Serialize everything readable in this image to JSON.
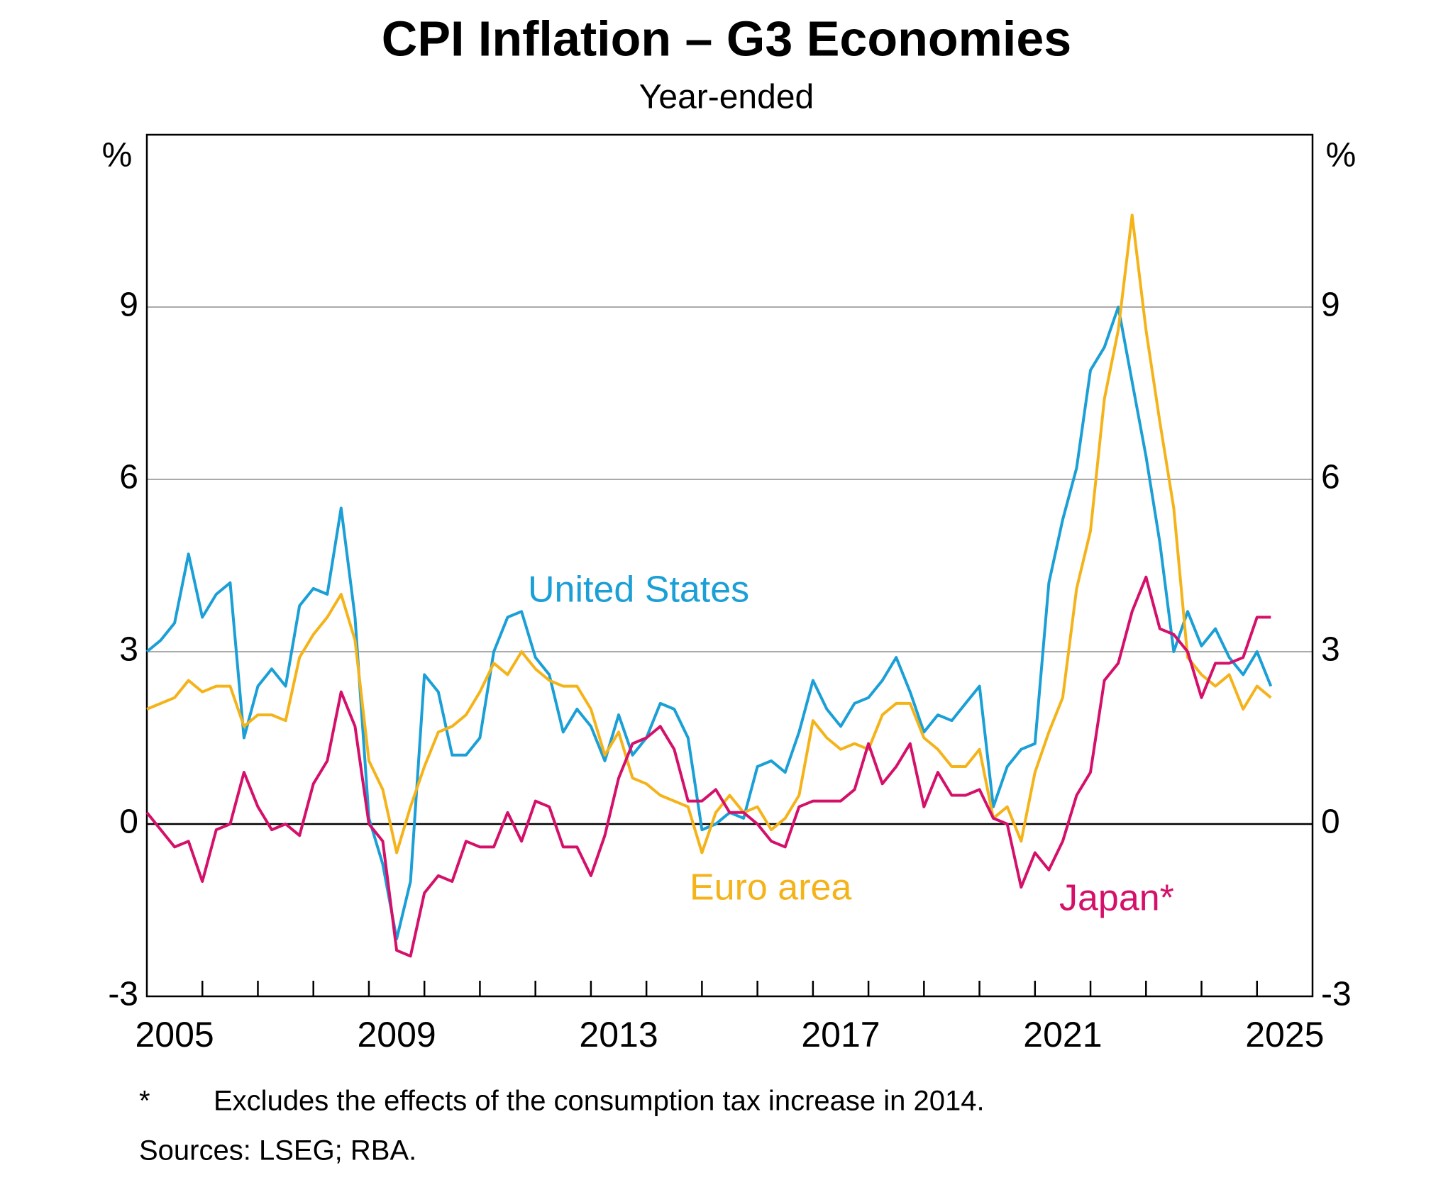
{
  "chart_data": {
    "type": "line",
    "title": "CPI Inflation – G3 Economies",
    "subtitle": "Year-ended",
    "y_label": "%",
    "y2_label": "%",
    "notes": [
      "*",
      "Excludes the effects of the consumption tax increase in 2014.",
      "Sources: LSEG; RBA."
    ],
    "xlim": [
      2005,
      2026
    ],
    "xticks": [
      {
        "value": 2005.5,
        "label": "2005"
      },
      {
        "value": 2009.5,
        "label": "2009"
      },
      {
        "value": 2013.5,
        "label": "2013"
      },
      {
        "value": 2017.5,
        "label": "2017"
      },
      {
        "value": 2021.5,
        "label": "2021"
      },
      {
        "value": 2025.5,
        "label": "2025"
      }
    ],
    "xminor_ticks": [
      2006,
      2007,
      2008,
      2009,
      2010,
      2011,
      2012,
      2013,
      2014,
      2015,
      2016,
      2017,
      2018,
      2019,
      2020,
      2021,
      2022,
      2023,
      2024,
      2025
    ],
    "ylim": [
      -3,
      12
    ],
    "yticks": [
      -3,
      0,
      3,
      6,
      9
    ],
    "grid": true,
    "x": [
      2005,
      2005.25,
      2005.5,
      2005.75,
      2006,
      2006.25,
      2006.5,
      2006.75,
      2007,
      2007.25,
      2007.5,
      2007.75,
      2008,
      2008.25,
      2008.5,
      2008.75,
      2009,
      2009.25,
      2009.5,
      2009.75,
      2010,
      2010.25,
      2010.5,
      2010.75,
      2011,
      2011.25,
      2011.5,
      2011.75,
      2012,
      2012.25,
      2012.5,
      2012.75,
      2013,
      2013.25,
      2013.5,
      2013.75,
      2014,
      2014.25,
      2014.5,
      2014.75,
      2015,
      2015.25,
      2015.5,
      2015.75,
      2016,
      2016.25,
      2016.5,
      2016.75,
      2017,
      2017.25,
      2017.5,
      2017.75,
      2018,
      2018.25,
      2018.5,
      2018.75,
      2019,
      2019.25,
      2019.5,
      2019.75,
      2020,
      2020.25,
      2020.5,
      2020.75,
      2021,
      2021.25,
      2021.5,
      2021.75,
      2022,
      2022.25,
      2022.5,
      2022.75,
      2023,
      2023.25,
      2023.5,
      2023.75,
      2024,
      2024.25,
      2024.5,
      2024.75,
      2025,
      2025.25
    ],
    "series": [
      {
        "name": "United States",
        "color": "#1a9fd6",
        "values": [
          3.0,
          3.2,
          3.5,
          4.7,
          3.6,
          4.0,
          4.2,
          1.5,
          2.4,
          2.7,
          2.4,
          3.8,
          4.1,
          4.0,
          5.5,
          3.6,
          0.1,
          -0.7,
          -2.0,
          -1.0,
          2.6,
          2.3,
          1.2,
          1.2,
          1.5,
          3.0,
          3.6,
          3.7,
          2.9,
          2.6,
          1.6,
          2.0,
          1.7,
          1.1,
          1.9,
          1.2,
          1.5,
          2.1,
          2.0,
          1.5,
          -0.1,
          0.0,
          0.2,
          0.1,
          1.0,
          1.1,
          0.9,
          1.6,
          2.5,
          2.0,
          1.7,
          2.1,
          2.2,
          2.5,
          2.9,
          2.3,
          1.6,
          1.9,
          1.8,
          2.1,
          2.4,
          0.3,
          1.0,
          1.3,
          1.4,
          4.2,
          5.3,
          6.2,
          7.9,
          8.3,
          9.0,
          7.7,
          6.4,
          4.9,
          3.0,
          3.7,
          3.1,
          3.4,
          2.9,
          2.6,
          3.0,
          2.4
        ]
      },
      {
        "name": "Euro area",
        "color": "#f5b31a",
        "values": [
          2.0,
          2.1,
          2.2,
          2.5,
          2.3,
          2.4,
          2.4,
          1.7,
          1.9,
          1.9,
          1.8,
          2.9,
          3.3,
          3.6,
          4.0,
          3.2,
          1.1,
          0.6,
          -0.5,
          0.3,
          1.0,
          1.6,
          1.7,
          1.9,
          2.3,
          2.8,
          2.6,
          3.0,
          2.7,
          2.5,
          2.4,
          2.4,
          2.0,
          1.2,
          1.6,
          0.8,
          0.7,
          0.5,
          0.4,
          0.3,
          -0.5,
          0.2,
          0.5,
          0.2,
          0.3,
          -0.1,
          0.1,
          0.5,
          1.8,
          1.5,
          1.3,
          1.4,
          1.3,
          1.9,
          2.1,
          2.1,
          1.5,
          1.3,
          1.0,
          1.0,
          1.3,
          0.1,
          0.3,
          -0.3,
          0.9,
          1.6,
          2.2,
          4.1,
          5.1,
          7.4,
          8.6,
          10.6,
          8.6,
          7.0,
          5.5,
          2.9,
          2.6,
          2.4,
          2.6,
          2.0,
          2.4,
          2.2
        ]
      },
      {
        "name": "Japan*",
        "color": "#d4106a",
        "values": [
          0.2,
          -0.1,
          -0.4,
          -0.3,
          -1.0,
          -0.1,
          0.0,
          0.9,
          0.3,
          -0.1,
          0.0,
          -0.2,
          0.7,
          1.1,
          2.3,
          1.7,
          0.0,
          -0.3,
          -2.2,
          -2.3,
          -1.2,
          -0.9,
          -1.0,
          -0.3,
          -0.4,
          -0.4,
          0.2,
          -0.3,
          0.4,
          0.3,
          -0.4,
          -0.4,
          -0.9,
          -0.2,
          0.8,
          1.4,
          1.5,
          1.7,
          1.3,
          0.4,
          0.4,
          0.6,
          0.2,
          0.2,
          0.0,
          -0.3,
          -0.4,
          0.3,
          0.4,
          0.4,
          0.4,
          0.6,
          1.4,
          0.7,
          1.0,
          1.4,
          0.3,
          0.9,
          0.5,
          0.5,
          0.6,
          0.1,
          0.0,
          -1.1,
          -0.5,
          -0.8,
          -0.3,
          0.5,
          0.9,
          2.5,
          2.8,
          3.7,
          4.3,
          3.4,
          3.3,
          3.0,
          2.2,
          2.8,
          2.8,
          2.9,
          3.6,
          3.6
        ]
      }
    ]
  }
}
